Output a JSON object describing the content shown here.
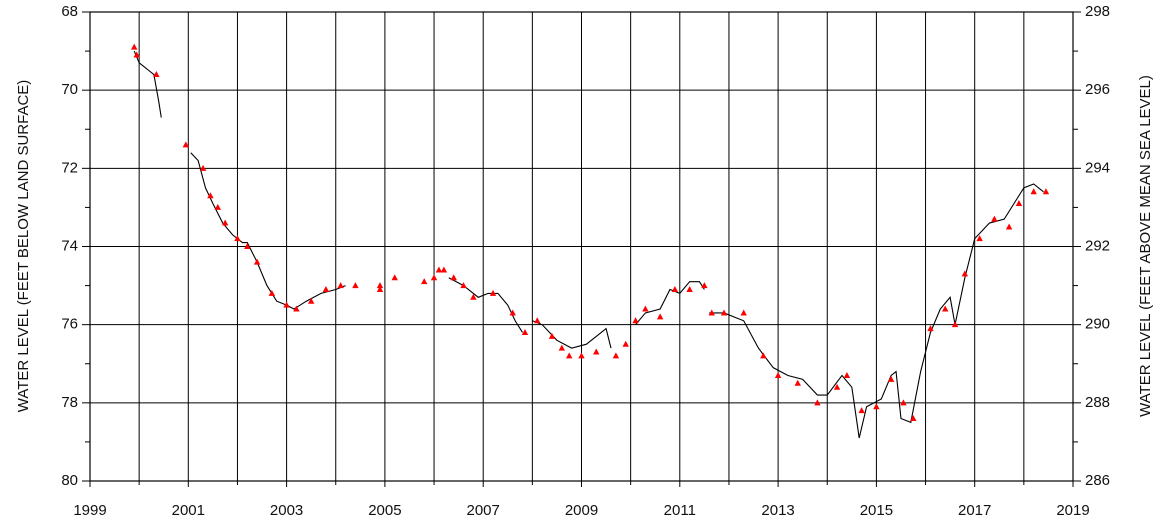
{
  "chart_data": {
    "type": "line",
    "ylabel": "WATER LEVEL (FEET BELOW LAND SURFACE)",
    "y2label": "WATER LEVEL (FEET ABOVE MEAN SEA LEVEL)",
    "xlim": [
      1999,
      2019
    ],
    "xticks": [
      1999,
      2001,
      2003,
      2005,
      2007,
      2009,
      2011,
      2013,
      2015,
      2017,
      2019
    ],
    "xminor_ticks": [
      2000,
      2002,
      2004,
      2006,
      2008,
      2010,
      2012,
      2014,
      2016,
      2018
    ],
    "ylim": [
      68,
      80
    ],
    "yticks": [
      68,
      70,
      72,
      74,
      76,
      78,
      80
    ],
    "yminor_ticks": [
      69,
      71,
      73,
      75,
      77,
      79
    ],
    "y2lim": [
      298,
      286
    ],
    "y2ticks": [
      298,
      296,
      294,
      292,
      290,
      288,
      286
    ],
    "grid": true,
    "series": [
      {
        "type": "line",
        "color": "#000000",
        "x": [
          1999.9,
          2000.0,
          2000.1,
          2000.2,
          2000.3,
          2000.4,
          2000.45,
          null,
          2001.05,
          2001.2,
          2001.35,
          2001.5,
          2001.7,
          2001.9,
          2002.1,
          2002.2,
          2002.4,
          2002.6,
          2002.8,
          2003.0,
          2003.15,
          2003.4,
          2003.7,
          2004.0,
          2004.2,
          null,
          2006.3,
          2006.6,
          2006.9,
          2007.1,
          2007.3,
          2007.5,
          2007.65,
          2007.8,
          null,
          2008.0,
          2008.2,
          2008.5,
          2008.8,
          2009.1,
          2009.3,
          2009.5,
          2009.6,
          null,
          2010.1,
          2010.3,
          2010.6,
          2010.8,
          2011.0,
          2011.2,
          2011.4,
          2011.5,
          null,
          2011.6,
          2011.9,
          2012.3,
          2012.6,
          2012.9,
          2013.2,
          2013.5,
          2013.8,
          2014.0,
          2014.3,
          2014.5,
          2014.65,
          2014.8,
          2015.1,
          2015.3,
          2015.4,
          2015.5,
          2015.7,
          2015.9,
          2016.1,
          2016.3,
          2016.5,
          2016.6,
          2016.8,
          2017.0,
          2017.3,
          2017.6,
          2017.8,
          2018.0,
          2018.2,
          2018.4
        ],
        "values": [
          69.0,
          69.3,
          69.4,
          69.5,
          69.6,
          70.3,
          70.7,
          null,
          71.6,
          71.8,
          72.5,
          72.9,
          73.4,
          73.7,
          73.9,
          73.9,
          74.4,
          75.0,
          75.4,
          75.5,
          75.6,
          75.4,
          75.2,
          75.1,
          75.0,
          null,
          74.8,
          75.0,
          75.3,
          75.2,
          75.2,
          75.5,
          75.9,
          76.2,
          null,
          75.9,
          76.0,
          76.4,
          76.6,
          76.5,
          76.3,
          76.1,
          76.6,
          null,
          76.0,
          75.7,
          75.6,
          75.1,
          75.2,
          74.9,
          74.9,
          75.1,
          null,
          75.7,
          75.7,
          75.9,
          76.6,
          77.1,
          77.3,
          77.4,
          77.8,
          77.8,
          77.3,
          77.6,
          78.9,
          78.1,
          77.9,
          77.3,
          77.2,
          78.4,
          78.5,
          77.2,
          76.2,
          75.6,
          75.3,
          76.0,
          74.8,
          73.8,
          73.4,
          73.3,
          72.9,
          72.5,
          72.4,
          72.6
        ]
      },
      {
        "type": "scatter",
        "marker": "triangle",
        "color": "#ff0000",
        "x": [
          1999.9,
          1999.95,
          2000.35,
          2000.95,
          2001.3,
          2001.45,
          2001.6,
          2001.75,
          2002.0,
          2002.2,
          2002.4,
          2002.7,
          2003.0,
          2003.2,
          2003.5,
          2003.8,
          2004.1,
          2004.4,
          2004.9,
          2004.9,
          2005.2,
          2005.8,
          2006.0,
          2006.1,
          2006.2,
          2006.4,
          2006.6,
          2006.8,
          2007.2,
          2007.6,
          2007.85,
          2008.1,
          2008.4,
          2008.6,
          2008.75,
          2009.0,
          2009.3,
          2009.7,
          2009.9,
          2010.1,
          2010.3,
          2010.6,
          2010.9,
          2011.2,
          2011.5,
          2011.65,
          2011.9,
          2012.3,
          2012.7,
          2013.0,
          2013.4,
          2013.8,
          2014.2,
          2014.4,
          2014.7,
          2015.0,
          2015.3,
          2015.55,
          2015.75,
          2016.1,
          2016.4,
          2016.6,
          2016.8,
          2017.1,
          2017.4,
          2017.7,
          2017.9,
          2018.2,
          2018.45
        ],
        "values": [
          68.9,
          69.1,
          69.6,
          71.4,
          72.0,
          72.7,
          73.0,
          73.4,
          73.8,
          74.0,
          74.4,
          75.2,
          75.5,
          75.6,
          75.4,
          75.1,
          75.0,
          75.0,
          75.0,
          75.1,
          74.8,
          74.9,
          74.8,
          74.6,
          74.6,
          74.8,
          75.0,
          75.3,
          75.2,
          75.7,
          76.2,
          75.9,
          76.3,
          76.6,
          76.8,
          76.8,
          76.7,
          76.8,
          76.5,
          75.9,
          75.6,
          75.8,
          75.1,
          75.1,
          75.0,
          75.7,
          75.7,
          75.7,
          76.8,
          77.3,
          77.5,
          78.0,
          77.6,
          77.3,
          78.2,
          78.1,
          77.4,
          78.0,
          78.4,
          76.1,
          75.6,
          76.0,
          74.7,
          73.8,
          73.3,
          73.5,
          72.9,
          72.6,
          72.6
        ]
      }
    ]
  }
}
